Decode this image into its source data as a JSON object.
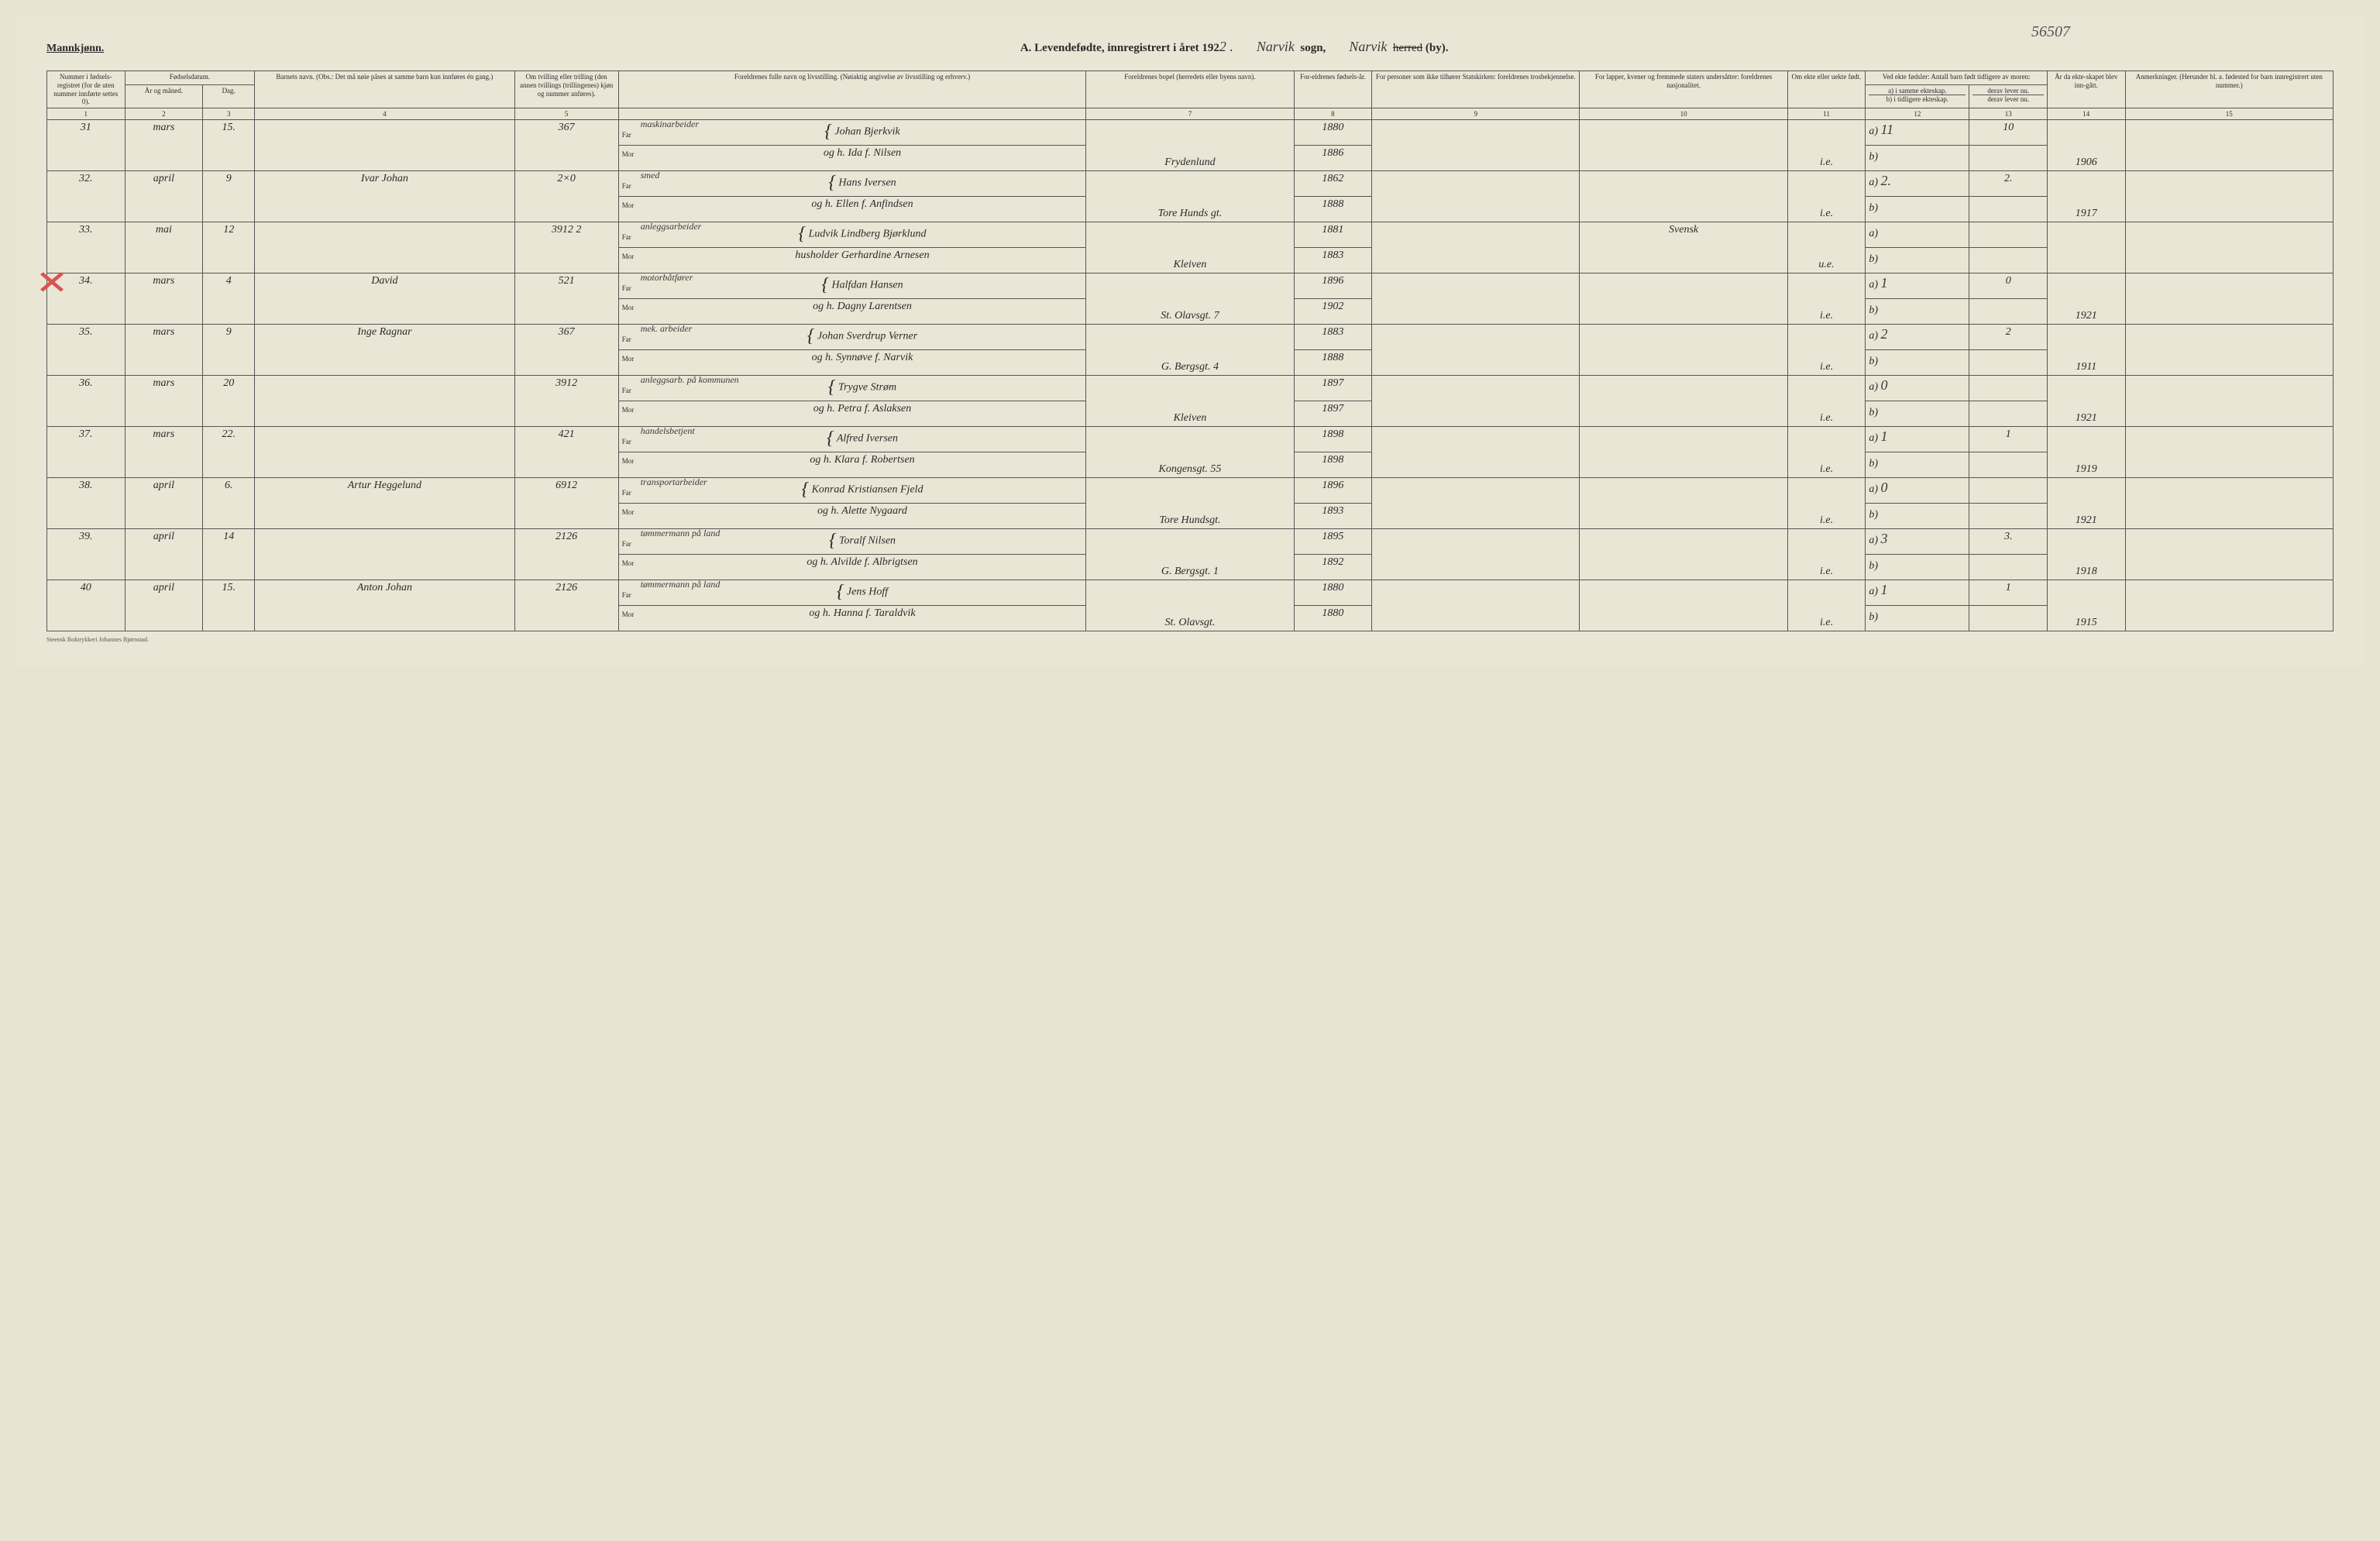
{
  "ref_number": "56507",
  "gender_heading": "Mannkjønn.",
  "title_prefix": "A.  Levendefødte, innregistrert i året 192",
  "title_year_suffix": "2 .",
  "parish_label": "sogn,",
  "parish_name": "Narvik",
  "district_label_strike": "herred",
  "district_label": "(by).",
  "district_name": "Narvik",
  "footer_text": "Steensk Boktrykkeri Johannes Bjørnstad.",
  "columns": {
    "c1": "Nummer i fødsels-registret (for de uten nummer innførte settes 0).",
    "c_date": "Fødselsdatum.",
    "c2": "År og måned.",
    "c3": "Dag.",
    "c4": "Barnets navn.\n(Obs.: Det må nøie påses at samme barn kun innføres én gang.)",
    "c5": "Om tvilling eller trilling (den annen tvillings (trillingenes) kjøn og nummer anføres).",
    "c6": "Foreldrenes fulle navn og livsstilling.\n(Nøiaktig angivelse av livsstilling og erhverv.)",
    "c7": "Foreldrenes bopel (herredets eller byens navn).",
    "c8": "For-eldrenes fødsels-år.",
    "c9": "For personer som ikke tilhører Statskirken: foreldrenes trosbekjennelse.",
    "c10": "For lapper, kvener og fremmede staters undersåtter: foreldrenes nasjonalitet.",
    "c11": "Om ekte eller uekte født.",
    "c_12_13": "Ved ekte fødsler: Antall barn født tidligere av moren:",
    "c12a": "a) i samme ekteskap.",
    "c12b": "b) i tidligere ekteskap.",
    "c13a": "derav lever nu.",
    "c13b": "derav lever nu.",
    "c14": "År da ekte-skapet blev inn-gått.",
    "c15": "Anmerkninger.\n(Herunder bl. a. fødested for barn innregistrert uten nummer.)"
  },
  "colnums": [
    "1",
    "2",
    "3",
    "4",
    "5",
    "",
    "7",
    "8",
    "9",
    "10",
    "11",
    "12",
    "13",
    "14",
    "15"
  ],
  "far_label": "Far",
  "mor_label": "Mor",
  "rows": [
    {
      "num": "31",
      "month": "mars",
      "day": "15.",
      "name": "",
      "twin": "367",
      "occupation": "maskinarbeider",
      "far": "Johan Bjerkvik",
      "far_year": "1880",
      "mor": "og h. Ida f. Nilsen",
      "mor_year": "1886",
      "residence": "Frydenlund",
      "nationality": "",
      "legit": "i.e.",
      "a": "11",
      "a_lev": "10",
      "b": "",
      "marriage": "1906",
      "notes": ""
    },
    {
      "num": "32.",
      "month": "april",
      "day": "9",
      "name": "Ivar Johan",
      "twin": "2×0",
      "occupation": "smed",
      "far": "Hans Iversen",
      "far_year": "1862",
      "mor": "og h. Ellen f. Anfindsen",
      "mor_year": "1888",
      "residence": "Tore Hunds gt.",
      "nationality": "",
      "legit": "i.e.",
      "a": "2.",
      "a_lev": "2.",
      "b": "",
      "marriage": "1917",
      "notes": ""
    },
    {
      "num": "33.",
      "month": "mai",
      "day": "12",
      "name": "",
      "twin": "3912   2",
      "occupation": "anleggsarbeider",
      "far": "Ludvik Lindberg Bjørklund",
      "far_year": "1881",
      "mor": "husholder Gerhardine Arnesen",
      "mor_year": "1883",
      "residence": "Kleiven",
      "nationality": "Svensk",
      "legit": "u.e.",
      "a": "",
      "a_lev": "",
      "b": "",
      "marriage": "",
      "notes": ""
    },
    {
      "num": "34.",
      "month": "mars",
      "day": "4",
      "name": "David",
      "twin": "521",
      "occupation": "motorbåtfører",
      "far": "Halfdan Hansen",
      "far_year": "1896",
      "mor": "og h. Dagny Larentsen",
      "mor_year": "1902",
      "residence": "St. Olavsgt. 7",
      "nationality": "",
      "legit": "i.e.",
      "a": "1",
      "a_lev": "0",
      "b": "",
      "marriage": "1921",
      "notes": ""
    },
    {
      "num": "35.",
      "month": "mars",
      "day": "9",
      "name": "Inge Ragnar",
      "twin": "367",
      "occupation": "mek. arbeider",
      "far": "Johan Sverdrup Verner",
      "far_year": "1883",
      "mor": "og h. Synnøve f. Narvik",
      "mor_year": "1888",
      "residence": "G. Bergsgt. 4",
      "nationality": "",
      "legit": "i.e.",
      "a": "2",
      "a_lev": "2",
      "b": "",
      "marriage": "1911",
      "notes": ""
    },
    {
      "num": "36.",
      "month": "mars",
      "day": "20",
      "name": "",
      "twin": "3912",
      "occupation": "anleggsarb. på kommunen",
      "far": "Trygve Strøm",
      "far_year": "1897",
      "mor": "og h. Petra f. Aslaksen",
      "mor_year": "1897",
      "residence": "Kleiven",
      "nationality": "",
      "legit": "i.e.",
      "a": "0",
      "a_lev": "",
      "b": "",
      "marriage": "1921",
      "notes": ""
    },
    {
      "num": "37.",
      "month": "mars",
      "day": "22.",
      "name": "",
      "twin": "421",
      "occupation": "handelsbetjent",
      "far": "Alfred Iversen",
      "far_year": "1898",
      "mor": "og h. Klara f. Robertsen",
      "mor_year": "1898",
      "residence": "Kongensgt. 55",
      "nationality": "",
      "legit": "i.e.",
      "a": "1",
      "a_lev": "1",
      "b": "",
      "marriage": "1919",
      "notes": ""
    },
    {
      "num": "38.",
      "month": "april",
      "day": "6.",
      "name": "Artur Heggelund",
      "twin": "6912",
      "occupation": "transportarbeider",
      "far": "Konrad Kristiansen Fjeld",
      "far_year": "1896",
      "mor": "og h. Alette Nygaard",
      "mor_year": "1893",
      "residence": "Tore Hundsgt.",
      "nationality": "",
      "legit": "i.e.",
      "a": "0",
      "a_lev": "",
      "b": "",
      "marriage": "1921",
      "notes": ""
    },
    {
      "num": "39.",
      "month": "april",
      "day": "14",
      "name": "",
      "twin": "2126",
      "occupation": "tømmermann på land",
      "far": "Toralf Nilsen",
      "far_year": "1895",
      "mor": "og h. Alvilde f. Albrigtsen",
      "mor_year": "1892",
      "residence": "G. Bergsgt. 1",
      "nationality": "",
      "legit": "i.e.",
      "a": "3",
      "a_lev": "3.",
      "b": "",
      "marriage": "1918",
      "notes": ""
    },
    {
      "num": "40",
      "month": "april",
      "day": "15.",
      "name": "Anton Johan",
      "twin": "2126",
      "occupation": "tømmermann på land",
      "far": "Jens Hoff",
      "far_year": "1880",
      "mor": "og h. Hanna f. Taraldvik",
      "mor_year": "1880",
      "residence": "St. Olavsgt.",
      "nationality": "",
      "legit": "i.e.",
      "a": "1",
      "a_lev": "1",
      "b": "",
      "marriage": "1915",
      "notes": ""
    }
  ],
  "styling": {
    "page_bg": "#eae6d6",
    "ink": "#2a2a2a",
    "red_mark": "#d9534f",
    "red_line": "#e08a6a",
    "border": "#555555",
    "handwriting_font": "Brush Script MT, cursive",
    "print_font": "Georgia, Times New Roman, serif",
    "header_fontsize_pt": 11,
    "body_fontsize_pt": 10
  }
}
